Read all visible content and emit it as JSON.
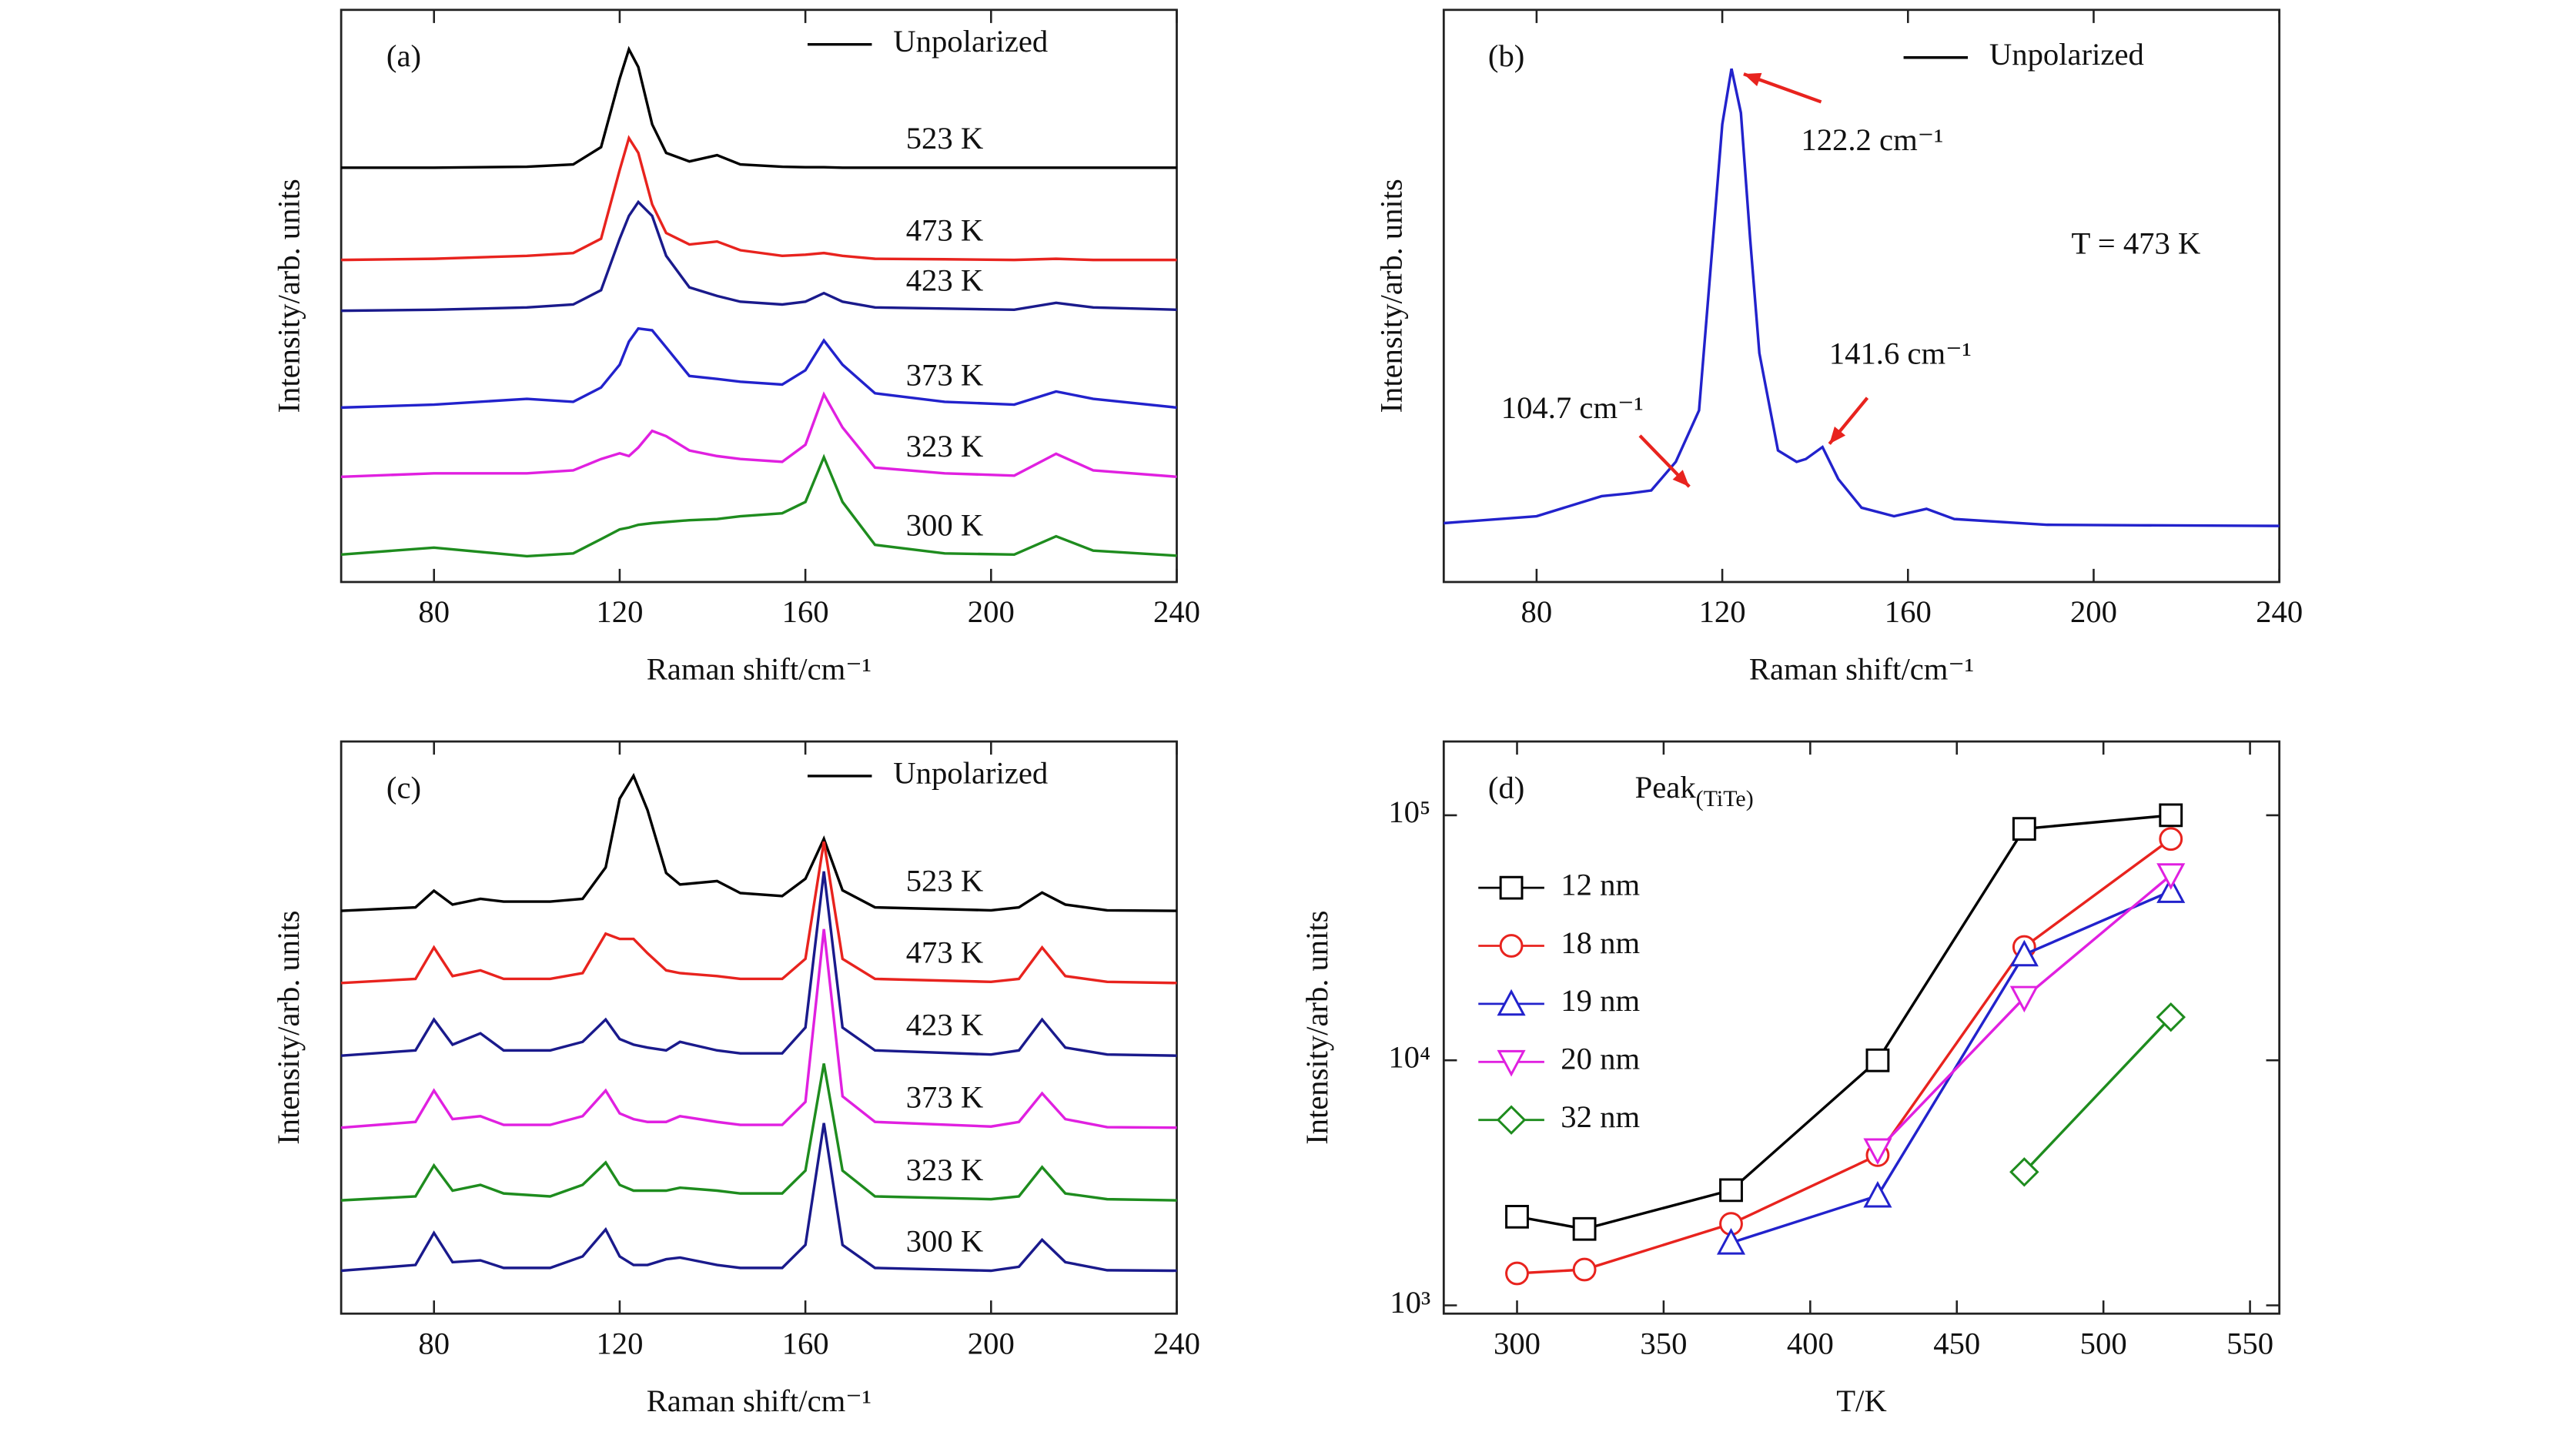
{
  "chart_data": [
    {
      "type": "line",
      "panel_label": "(a)",
      "legend_label": "Unpolarized",
      "xlabel": "Raman shift/cm⁻¹",
      "ylabel": "Intensity/arb. units",
      "xlim": [
        60,
        240
      ],
      "xticks": [
        80,
        120,
        160,
        200,
        240
      ],
      "ylim": [
        0,
        100
      ],
      "x": [
        60,
        80,
        100,
        110,
        116,
        120,
        122,
        124,
        127,
        130,
        135,
        141,
        146,
        155,
        160,
        164,
        168,
        175,
        190,
        205,
        214,
        222,
        240
      ],
      "series": [
        {
          "name": "523 K",
          "color": "#000000",
          "values": [
            72.4,
            72.4,
            72.6,
            73,
            76,
            88,
            93.1,
            90,
            80,
            75,
            73.5,
            74.6,
            73,
            72.6,
            72.5,
            72.5,
            72.4,
            72.4,
            72.4,
            72.4,
            72.4,
            72.4,
            72.4
          ]
        },
        {
          "name": "473 K",
          "color": "#e8231e",
          "values": [
            56.3,
            56.5,
            57,
            57.5,
            60,
            72,
            77.6,
            75,
            66,
            61,
            59,
            59.5,
            58,
            57,
            57.2,
            57.5,
            57,
            56.5,
            56.4,
            56.3,
            56.5,
            56.3,
            56.3
          ]
        },
        {
          "name": "423 K",
          "color": "#1a1a8c",
          "values": [
            47.4,
            47.6,
            48,
            48.5,
            51,
            60,
            64,
            66.4,
            64,
            57,
            51.5,
            50,
            49,
            48.5,
            49,
            50.5,
            49,
            48,
            47.8,
            47.6,
            48.8,
            48,
            47.6
          ]
        },
        {
          "name": "373 K",
          "color": "#2222cc",
          "values": [
            30.5,
            31,
            32,
            31.5,
            34,
            38,
            42,
            44.3,
            44,
            41,
            36,
            35.5,
            35,
            34.5,
            37,
            42.2,
            38,
            33,
            31.5,
            31,
            33.3,
            32,
            30.5
          ]
        },
        {
          "name": "323 K",
          "color": "#e020e0",
          "values": [
            18.4,
            19,
            19,
            19.5,
            21.5,
            22.5,
            22,
            23.5,
            26.4,
            25.5,
            23,
            22,
            21.5,
            21,
            24,
            32.8,
            27,
            20,
            19,
            18.6,
            22.4,
            19.5,
            18.4
          ]
        },
        {
          "name": "300 K",
          "color": "#1e8c1e",
          "values": [
            4.8,
            6,
            4.5,
            5,
            7.5,
            9.2,
            9.5,
            10,
            10.3,
            10.5,
            10.8,
            11,
            11.5,
            12,
            14,
            21.8,
            14,
            6.5,
            5,
            4.8,
            8,
            5.5,
            4.6
          ]
        }
      ]
    },
    {
      "type": "line",
      "panel_label": "(b)",
      "legend_label": "Unpolarized",
      "xlabel": "Raman shift/cm⁻¹",
      "ylabel": "Intensity/arb. units",
      "xlim": [
        60,
        240
      ],
      "xticks": [
        80,
        120,
        160,
        200,
        240
      ],
      "ylim": [
        0,
        100
      ],
      "x": [
        60,
        80,
        94,
        100,
        104.7,
        110,
        115,
        118,
        120,
        122,
        124,
        126,
        128,
        132,
        136,
        138,
        141.6,
        145,
        150,
        157,
        164,
        170,
        190,
        210,
        240
      ],
      "series": [
        {
          "color": "#2222cc",
          "values": [
            10.3,
            11.5,
            15,
            15.5,
            16,
            21,
            30,
            60,
            80,
            89.7,
            82,
            60,
            40,
            23,
            21,
            21.5,
            23.6,
            18,
            13,
            11.5,
            12.8,
            11,
            10,
            9.9,
            9.8
          ]
        }
      ],
      "annotations": [
        {
          "text": "122.2 cm⁻¹",
          "color": "#2222cc"
        },
        {
          "text": "141.6 cm⁻¹",
          "color": "#2222cc"
        },
        {
          "text": "104.7 cm⁻¹",
          "color": "#2222cc"
        },
        {
          "text": "T = 473 K",
          "color": "#111111"
        }
      ]
    },
    {
      "type": "line",
      "panel_label": "(c)",
      "legend_label": "Unpolarized",
      "xlabel": "Raman shift/cm⁻¹",
      "ylabel": "Intensity/arb. units",
      "xlim": [
        60,
        240
      ],
      "xticks": [
        80,
        120,
        160,
        200,
        240
      ],
      "ylim": [
        0,
        100
      ],
      "x": [
        60,
        76,
        80,
        84,
        90,
        95,
        105,
        112,
        117,
        120,
        123,
        126,
        130,
        133,
        141,
        146,
        155,
        160,
        164,
        168,
        175,
        200,
        206,
        211,
        216,
        225,
        240
      ],
      "series": [
        {
          "name": "523 K",
          "color": "#000000",
          "values": [
            70.4,
            71,
            73.9,
            71.5,
            72.5,
            72,
            72,
            72.5,
            78,
            90,
            94,
            88,
            77,
            75,
            75.6,
            73.5,
            73,
            76,
            83,
            74,
            71,
            70.5,
            71,
            73.6,
            71.5,
            70.5,
            70.4
          ]
        },
        {
          "name": "473 K",
          "color": "#e8231e",
          "values": [
            57.8,
            58.5,
            64,
            59,
            60,
            58.5,
            58.5,
            59.5,
            66.4,
            65.5,
            65.5,
            63,
            60,
            59.5,
            59,
            58.5,
            58.5,
            62,
            82.5,
            62,
            58.5,
            58,
            58.5,
            64,
            59,
            58,
            57.8
          ]
        },
        {
          "name": "423 K",
          "color": "#1a1a8c",
          "values": [
            45.1,
            46,
            51.4,
            47,
            49,
            46,
            46,
            47.5,
            51.4,
            48,
            47,
            46.5,
            46,
            47.5,
            46,
            45.5,
            45.5,
            50,
            77.3,
            50,
            46,
            45.3,
            46,
            51.4,
            46.5,
            45.3,
            45.1
          ]
        },
        {
          "name": "373 K",
          "color": "#e020e0",
          "values": [
            32.5,
            33.5,
            39,
            34,
            34.5,
            33,
            33,
            34.5,
            39,
            35,
            34,
            33.5,
            33.5,
            34.5,
            33.5,
            33,
            33,
            37,
            67.2,
            38,
            33.5,
            32.7,
            33.5,
            38.5,
            34,
            32.6,
            32.5
          ]
        },
        {
          "name": "323 K",
          "color": "#1e8c1e",
          "values": [
            19.8,
            20.5,
            25.9,
            21.5,
            22.5,
            21,
            20.5,
            22.5,
            26.4,
            22.5,
            21.5,
            21.5,
            21.5,
            22,
            21.5,
            21,
            21,
            25,
            43.7,
            25,
            20.5,
            20,
            20.5,
            25.6,
            21,
            20,
            19.8
          ]
        },
        {
          "name": "300 K",
          "color": "#1a1a8c",
          "values": [
            7.5,
            8.5,
            14.1,
            9,
            9.3,
            8,
            8,
            10,
            14.7,
            10,
            8.5,
            8.5,
            9.5,
            9.8,
            8.5,
            8,
            8,
            12,
            33.3,
            12,
            8,
            7.5,
            8.2,
            12.9,
            9,
            7.6,
            7.5
          ]
        }
      ]
    },
    {
      "type": "scatter-line",
      "panel_label": "(d)",
      "xlabel": "T/K",
      "ylabel": "Intensity/arb. units",
      "annotation": {
        "text": "Peak",
        "subscript": "(TiTe)"
      },
      "xlim": [
        275,
        560
      ],
      "xticks": [
        300,
        350,
        400,
        450,
        500,
        550
      ],
      "ylim": [
        925,
        200000
      ],
      "log_y": true,
      "yticks": [
        {
          "value": 1000,
          "label": "10³"
        },
        {
          "value": 10000,
          "label": "10⁴"
        },
        {
          "value": 100000,
          "label": "10⁵"
        }
      ],
      "legend": "upper left",
      "series": [
        {
          "name": "12 nm",
          "color": "#000000",
          "marker": "square",
          "x": [
            300,
            323,
            373,
            423,
            473,
            523
          ],
          "values": [
            2300,
            2050,
            2950,
            10000,
            88000,
            100000
          ]
        },
        {
          "name": "18 nm",
          "color": "#e8231e",
          "marker": "circle",
          "x": [
            300,
            323,
            373,
            423,
            473,
            523
          ],
          "values": [
            1350,
            1400,
            2150,
            4100,
            29000,
            80000
          ]
        },
        {
          "name": "19 nm",
          "color": "#2222cc",
          "marker": "triangle-up",
          "x": [
            373,
            423,
            473,
            523
          ],
          "values": [
            1800,
            2800,
            27000,
            49000
          ]
        },
        {
          "name": "20 nm",
          "color": "#e020e0",
          "marker": "triangle-down",
          "x": [
            423,
            473,
            523
          ],
          "values": [
            4300,
            18000,
            57000
          ]
        },
        {
          "name": "32 nm",
          "color": "#1e8c1e",
          "marker": "diamond",
          "x": [
            473,
            523
          ],
          "values": [
            3500,
            15000
          ]
        }
      ]
    }
  ]
}
